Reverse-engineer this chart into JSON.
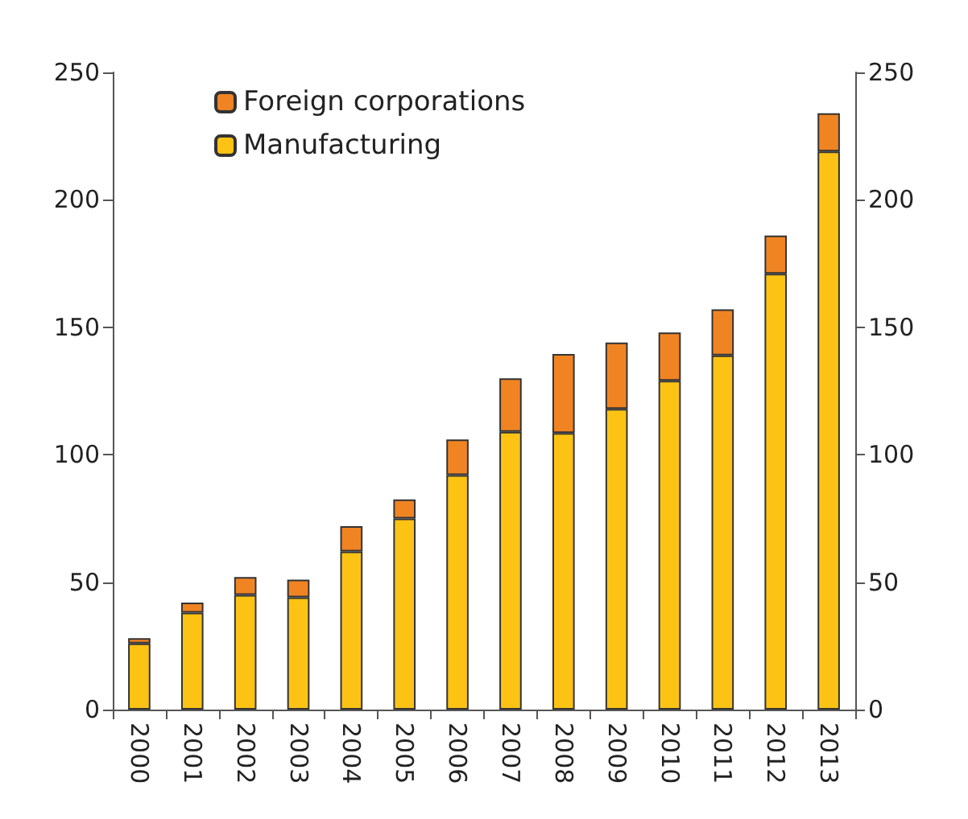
{
  "chart_data": {
    "type": "bar",
    "stacked": true,
    "categories": [
      "2000",
      "2001",
      "2002",
      "2003",
      "2004",
      "2005",
      "2006",
      "2007",
      "2008",
      "2009",
      "2010",
      "2011",
      "2012",
      "2013"
    ],
    "series": [
      {
        "name": "Manufacturing",
        "color": "#fdc314",
        "values": [
          26,
          38,
          45,
          44,
          62,
          75,
          92,
          109,
          108.5,
          118,
          129,
          139,
          171,
          219
        ]
      },
      {
        "name": "Foreign corporations",
        "color": "#f08423",
        "values": [
          2,
          4,
          7,
          7,
          10,
          7.5,
          14,
          21,
          31,
          26,
          19,
          18,
          15,
          15
        ]
      }
    ],
    "ylim": [
      0,
      250
    ],
    "yticks": [
      0,
      50,
      100,
      150,
      200,
      250
    ],
    "y2lim": [
      0,
      250
    ],
    "y2ticks": [
      0,
      50,
      100,
      150,
      200,
      250
    ],
    "grid": false,
    "legend": "top left"
  }
}
